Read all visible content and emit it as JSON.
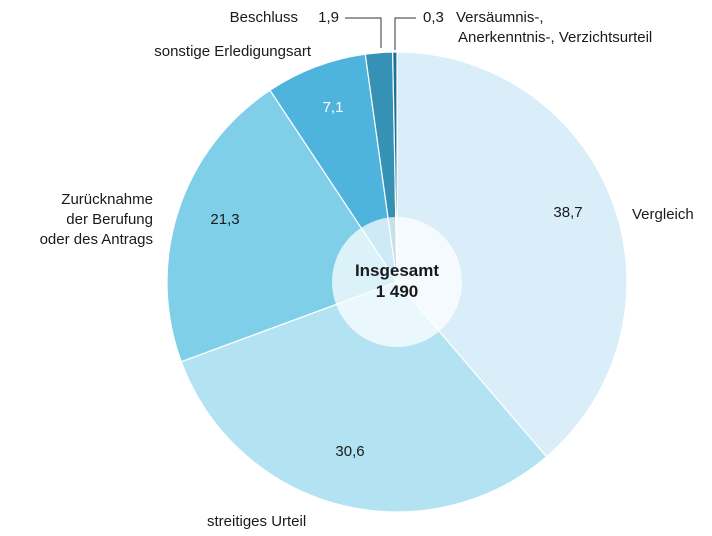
{
  "chart_data": {
    "type": "pie",
    "categories": [
      "Vergleich",
      "streitiges Urteil",
      "Zurücknahme\nder Berufung\noder des Antrags",
      "sonstige Erledigungsart",
      "Beschluss",
      "Versäumnis-,\nAnerkenntnis-, Verzichtsurteil"
    ],
    "values": [
      38.7,
      30.6,
      21.3,
      7.1,
      1.9,
      0.3
    ],
    "value_labels": [
      "38,7",
      "30,6",
      "21,3",
      "7,1",
      "1,9",
      "0,3"
    ],
    "colors": [
      "#d9eef9",
      "#b3e2f2",
      "#7fcfe8",
      "#4eb3dd",
      "#3592b5",
      "#1b6f9b"
    ],
    "center_title": "Insgesamt",
    "total": {
      "value": 1490,
      "label": "1 490"
    }
  }
}
